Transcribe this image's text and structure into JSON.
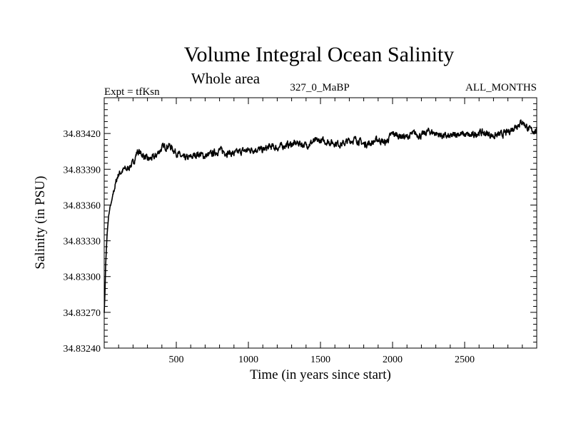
{
  "chart_data": {
    "type": "line",
    "title": "Volume Integral Ocean Salinity",
    "subtitle": "Whole area",
    "header_left": "Expt = tfKsn",
    "header_center": "327_0_MaBP",
    "header_right": "ALL_MONTHS",
    "xlabel": "Time (in years since start)",
    "ylabel": "Salinity (in PSU)",
    "xlim": [
      0,
      3000
    ],
    "ylim": [
      34.8324,
      34.8345
    ],
    "x_ticks": [
      500,
      1000,
      1500,
      2000,
      2500
    ],
    "x_tick_labels": [
      "500",
      "1000",
      "1500",
      "2000",
      "2500"
    ],
    "y_ticks": [
      34.8324,
      34.8327,
      34.833,
      34.8333,
      34.8336,
      34.8339,
      34.8342
    ],
    "y_tick_labels": [
      "34.83240",
      "34.83270",
      "34.83300",
      "34.83330",
      "34.83360",
      "34.83390",
      "34.83420"
    ],
    "series": [
      {
        "name": "Salinity",
        "x": [
          0,
          5,
          10,
          20,
          30,
          40,
          50,
          60,
          70,
          80,
          90,
          100,
          120,
          140,
          160,
          180,
          200,
          230,
          260,
          300,
          350,
          400,
          450,
          500,
          550,
          600,
          650,
          700,
          750,
          800,
          850,
          900,
          950,
          1000,
          1050,
          1100,
          1150,
          1200,
          1250,
          1300,
          1350,
          1400,
          1450,
          1500,
          1550,
          1600,
          1650,
          1700,
          1750,
          1800,
          1850,
          1900,
          1950,
          2000,
          2050,
          2100,
          2150,
          2200,
          2250,
          2300,
          2350,
          2400,
          2450,
          2500,
          2550,
          2600,
          2650,
          2700,
          2750,
          2800,
          2850,
          2900,
          2950,
          3000
        ],
        "values": [
          34.8327,
          34.83285,
          34.8331,
          34.83335,
          34.8335,
          34.83358,
          34.83362,
          34.83368,
          34.83374,
          34.83378,
          34.83383,
          34.83386,
          34.83388,
          34.8339,
          34.8339,
          34.83393,
          34.83395,
          34.83405,
          34.83403,
          34.83398,
          34.834,
          34.83408,
          34.8341,
          34.83404,
          34.83399,
          34.834,
          34.83403,
          34.83401,
          34.83403,
          34.83406,
          34.83404,
          34.83403,
          34.83405,
          34.83406,
          34.83407,
          34.83406,
          34.83409,
          34.83408,
          34.8341,
          34.83411,
          34.83412,
          34.8341,
          34.83413,
          34.83414,
          34.83413,
          34.83412,
          34.83411,
          34.83414,
          34.83415,
          34.83411,
          34.83412,
          34.83415,
          34.83412,
          34.8342,
          34.83418,
          34.83417,
          34.8342,
          34.83418,
          34.83422,
          34.8342,
          34.83418,
          34.83417,
          34.8342,
          34.83419,
          34.83418,
          34.83421,
          34.8342,
          34.83418,
          34.83419,
          34.83421,
          34.83426,
          34.8343,
          34.83423,
          34.83422
        ]
      }
    ]
  }
}
